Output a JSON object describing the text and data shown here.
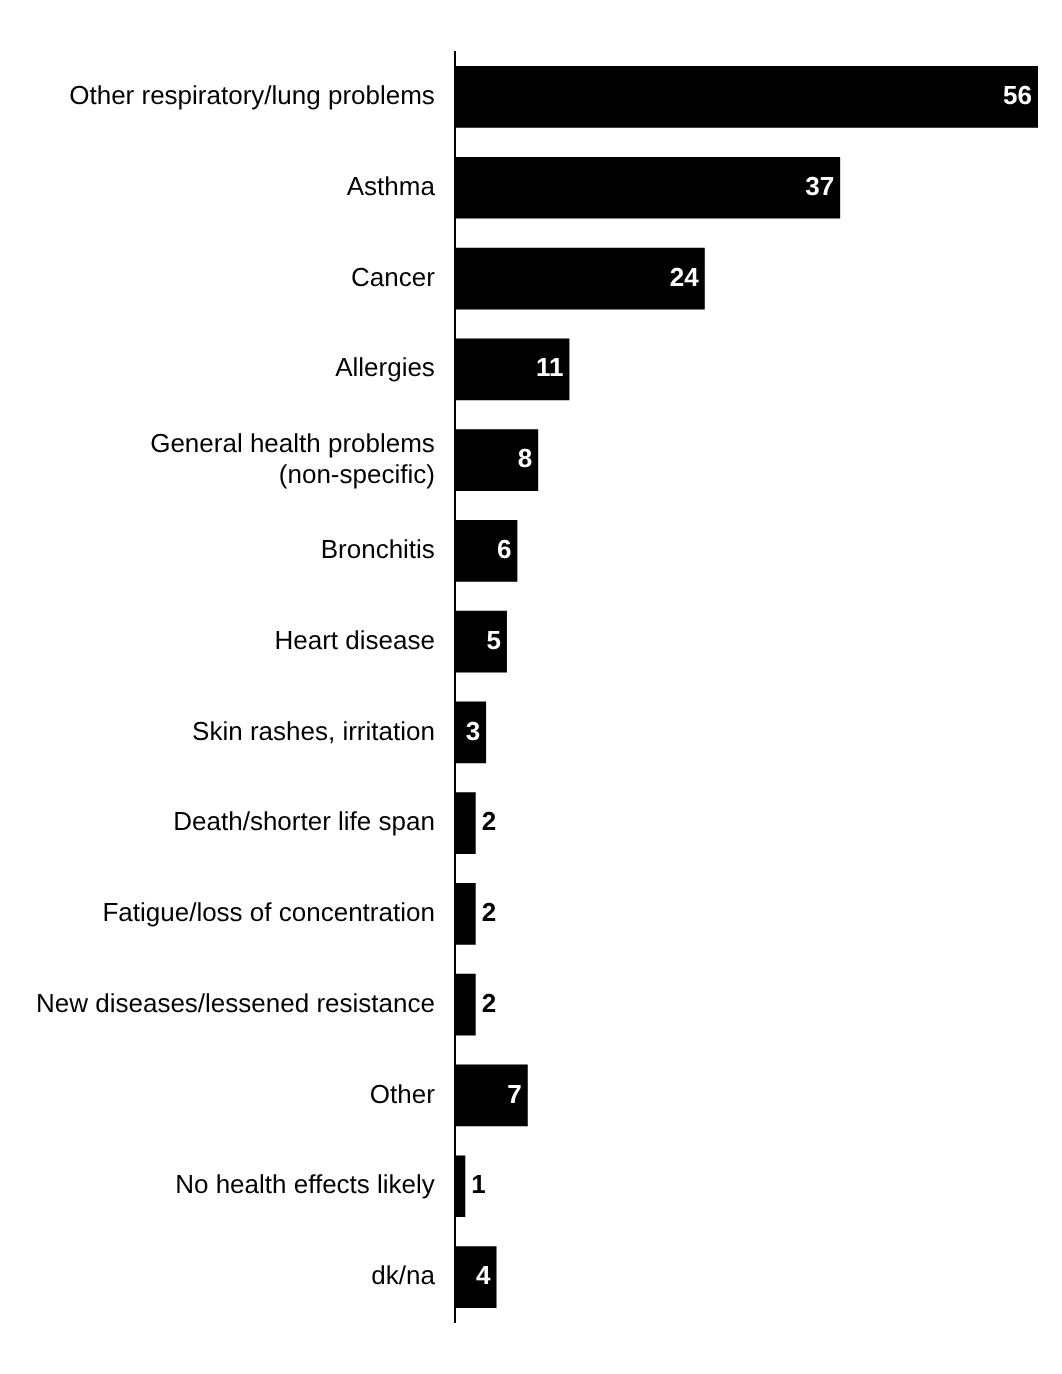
{
  "chart_data": {
    "type": "bar",
    "orientation": "horizontal",
    "data_labels": true,
    "categories": [
      "Other respiratory/lung problems",
      "Asthma",
      "Cancer",
      "Allergies",
      "General health problems (non-specific)",
      "Bronchitis",
      "Heart disease",
      "Skin rashes, irritation",
      "Death/shorter life span",
      "Fatigue/loss of concentration",
      "New diseases/lessened resistance",
      "Other",
      "No health effects likely",
      "dk/na"
    ],
    "values": [
      56,
      37,
      24,
      11,
      8,
      6,
      5,
      3,
      2,
      2,
      2,
      7,
      1,
      4
    ],
    "color": "#000000"
  }
}
